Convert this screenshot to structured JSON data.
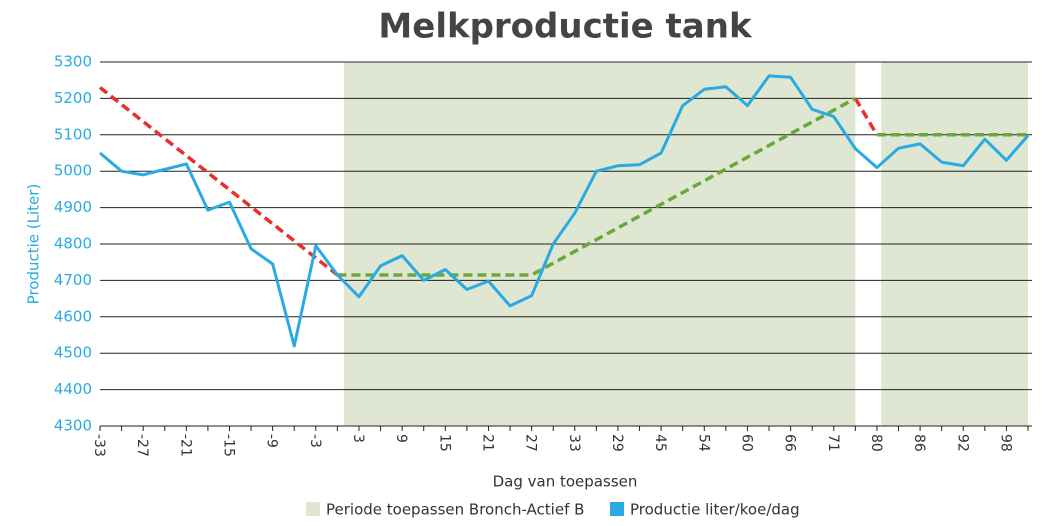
{
  "chart_data": {
    "type": "line",
    "title": "Melkproductie tank",
    "x_label": "Dag van toepassen",
    "y_label": "Productie (Liter)",
    "categories": [
      "-33",
      null,
      "-27",
      null,
      "-21",
      null,
      "-15",
      null,
      "-9",
      null,
      "-3",
      null,
      "3",
      null,
      "9",
      null,
      "15",
      null,
      "21",
      null,
      "27",
      null,
      "33",
      null,
      "29",
      null,
      "45",
      null,
      "54",
      null,
      "60",
      null,
      "66",
      null,
      "71",
      null,
      "80",
      null,
      "86",
      null,
      "92",
      null,
      "98",
      null
    ],
    "series": [
      {
        "name": "Productie liter/koe/dag",
        "color": "#29abe2",
        "values": [
          5050,
          5000,
          4990,
          5005,
          5020,
          4893,
          4915,
          4787,
          4745,
          4520,
          4795,
          4715,
          4655,
          4740,
          4768,
          4700,
          4730,
          4675,
          4698,
          4630,
          4658,
          4800,
          4885,
          5000,
          5015,
          5018,
          5050,
          5180,
          5225,
          5232,
          5180,
          5262,
          5258,
          5170,
          5150,
          5062,
          5010,
          5063,
          5075,
          5025,
          5015,
          5088,
          5030,
          5098
        ]
      }
    ],
    "trend_lines": [
      {
        "color": "#e8302a",
        "points": [
          {
            "i": 0,
            "v": 5230
          },
          {
            "i": 11,
            "v": 4715
          }
        ]
      },
      {
        "color": "#e8302a",
        "points": [
          {
            "i": 35,
            "v": 5200
          },
          {
            "i": 36,
            "v": 5100
          }
        ]
      },
      {
        "color": "#6aa83c",
        "points": [
          {
            "i": 11,
            "v": 4715
          },
          {
            "i": 20,
            "v": 4715
          },
          {
            "i": 35,
            "v": 5200
          }
        ]
      },
      {
        "color": "#6aa83c",
        "points": [
          {
            "i": 36,
            "v": 5100
          },
          {
            "i": 43,
            "v": 5100
          }
        ]
      }
    ],
    "shaded_name": "Periode toepassen Bronch-Actief B",
    "shaded_color": "#dfe7d2",
    "shaded_regions": [
      [
        11.3,
        35
      ],
      [
        36.2,
        43
      ]
    ],
    "ylim": [
      4300,
      5300
    ],
    "yticks": [
      4300,
      4400,
      4500,
      4600,
      4700,
      4800,
      4900,
      5000,
      5100,
      5200,
      5300
    ],
    "grid": true
  }
}
